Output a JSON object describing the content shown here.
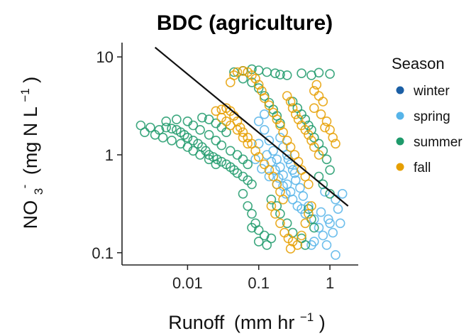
{
  "chart_data": {
    "type": "scatter",
    "title": "BDC (agriculture)",
    "xlabel": "Runoff",
    "xlabel_unit": "(mm hr",
    "xlabel_exp": "−1",
    "xlabel_close": ")",
    "ylabel_main": "NO",
    "ylabel_sub": "3",
    "ylabel_sup": "-",
    "ylabel_unit": "(mg N L",
    "ylabel_exp": "−1",
    "ylabel_close": ")",
    "x_scale": "log",
    "y_scale": "log",
    "xlim": [
      0.0012,
      2.5
    ],
    "ylim": [
      0.075,
      14
    ],
    "x_ticks": [
      {
        "value": 0.01,
        "label": "0.01"
      },
      {
        "value": 0.1,
        "label": "0.1"
      },
      {
        "value": 1,
        "label": "1"
      }
    ],
    "y_ticks": [
      {
        "value": 0.1,
        "label": "0.1"
      },
      {
        "value": 1,
        "label": "1"
      },
      {
        "value": 10,
        "label": "10"
      }
    ],
    "grid": false,
    "legend_title": "Season",
    "legend_position": "right",
    "marker": "open-circle",
    "series": [
      {
        "name": "winter",
        "color": "#1b5fa5",
        "points": []
      },
      {
        "name": "spring",
        "color": "#56b4e9",
        "points": [
          [
            0.1,
            2.2
          ],
          [
            0.12,
            1.8
          ],
          [
            0.14,
            1.4
          ],
          [
            0.16,
            1.1
          ],
          [
            0.18,
            0.9
          ],
          [
            0.2,
            0.75
          ],
          [
            0.22,
            0.62
          ],
          [
            0.25,
            0.5
          ],
          [
            0.28,
            0.42
          ],
          [
            0.3,
            0.35
          ],
          [
            0.35,
            0.3
          ],
          [
            0.4,
            0.28
          ],
          [
            0.45,
            0.25
          ],
          [
            0.1,
            1.3
          ],
          [
            0.13,
            1.0
          ],
          [
            0.15,
            0.85
          ],
          [
            0.17,
            0.7
          ],
          [
            0.19,
            0.58
          ],
          [
            0.22,
            0.48
          ],
          [
            0.09,
            0.9
          ],
          [
            0.11,
            0.72
          ],
          [
            0.14,
            0.6
          ],
          [
            0.18,
            0.5
          ],
          [
            0.24,
            0.4
          ],
          [
            0.26,
            0.9
          ],
          [
            0.3,
            0.7
          ],
          [
            0.33,
            0.55
          ],
          [
            0.38,
            0.46
          ],
          [
            0.42,
            0.38
          ],
          [
            0.5,
            0.3
          ],
          [
            0.6,
            0.22
          ],
          [
            0.7,
            0.18
          ],
          [
            0.8,
            0.15
          ],
          [
            0.6,
            0.13
          ],
          [
            0.9,
            0.12
          ],
          [
            1.0,
            0.2
          ],
          [
            1.1,
            0.16
          ],
          [
            0.75,
            0.26
          ],
          [
            0.95,
            0.22
          ],
          [
            1.2,
            0.35
          ],
          [
            1.3,
            0.28
          ],
          [
            1.2,
            0.095
          ],
          [
            1.4,
            0.2
          ],
          [
            0.55,
            0.12
          ],
          [
            1.5,
            0.4
          ],
          [
            0.85,
            0.42
          ],
          [
            0.2,
            1.5
          ],
          [
            0.22,
            1.2
          ],
          [
            0.25,
            1.0
          ],
          [
            0.28,
            0.8
          ],
          [
            0.32,
            0.65
          ],
          [
            0.12,
            2.6
          ]
        ]
      },
      {
        "name": "summer",
        "color": "#1e9a6b",
        "points": [
          [
            0.0022,
            2.0
          ],
          [
            0.003,
            1.9
          ],
          [
            0.004,
            1.8
          ],
          [
            0.005,
            1.9
          ],
          [
            0.006,
            1.85
          ],
          [
            0.007,
            1.8
          ],
          [
            0.008,
            1.7
          ],
          [
            0.009,
            1.6
          ],
          [
            0.01,
            1.5
          ],
          [
            0.012,
            1.4
          ],
          [
            0.014,
            1.3
          ],
          [
            0.016,
            1.2
          ],
          [
            0.018,
            1.1
          ],
          [
            0.02,
            1.0
          ],
          [
            0.023,
            0.95
          ],
          [
            0.026,
            0.9
          ],
          [
            0.03,
            0.85
          ],
          [
            0.035,
            0.8
          ],
          [
            0.04,
            0.75
          ],
          [
            0.045,
            0.7
          ],
          [
            0.05,
            0.65
          ],
          [
            0.06,
            0.6
          ],
          [
            0.07,
            0.55
          ],
          [
            0.08,
            0.5
          ],
          [
            0.0025,
            1.7
          ],
          [
            0.0035,
            1.6
          ],
          [
            0.0045,
            1.5
          ],
          [
            0.006,
            1.4
          ],
          [
            0.008,
            1.3
          ],
          [
            0.01,
            1.2
          ],
          [
            0.012,
            1.1
          ],
          [
            0.015,
            1.0
          ],
          [
            0.02,
            0.9
          ],
          [
            0.025,
            0.8
          ],
          [
            0.005,
            2.2
          ],
          [
            0.007,
            2.3
          ],
          [
            0.01,
            2.2
          ],
          [
            0.012,
            2.0
          ],
          [
            0.015,
            1.8
          ],
          [
            0.02,
            1.6
          ],
          [
            0.025,
            1.4
          ],
          [
            0.03,
            1.25
          ],
          [
            0.04,
            1.1
          ],
          [
            0.05,
            1.0
          ],
          [
            0.06,
            0.9
          ],
          [
            0.07,
            0.8
          ],
          [
            0.016,
            2.4
          ],
          [
            0.02,
            2.3
          ],
          [
            0.025,
            2.1
          ],
          [
            0.03,
            1.9
          ],
          [
            0.035,
            1.7
          ],
          [
            0.06,
            0.4
          ],
          [
            0.07,
            0.3
          ],
          [
            0.08,
            0.25
          ],
          [
            0.09,
            0.2
          ],
          [
            0.1,
            0.17
          ],
          [
            0.12,
            0.15
          ],
          [
            0.08,
            0.18
          ],
          [
            0.1,
            0.13
          ],
          [
            0.13,
            0.12
          ],
          [
            0.15,
            0.14
          ],
          [
            0.045,
            7.0
          ],
          [
            0.06,
            7.2
          ],
          [
            0.08,
            7.5
          ],
          [
            0.1,
            7.3
          ],
          [
            0.13,
            7.0
          ],
          [
            0.17,
            6.8
          ],
          [
            0.2,
            6.6
          ],
          [
            0.25,
            6.5
          ],
          [
            0.06,
            6.0
          ],
          [
            0.08,
            5.5
          ],
          [
            0.1,
            4.8
          ],
          [
            0.12,
            4.0
          ],
          [
            0.14,
            3.4
          ],
          [
            0.16,
            2.9
          ],
          [
            0.18,
            2.5
          ],
          [
            0.2,
            2.1
          ],
          [
            0.4,
            6.8
          ],
          [
            0.7,
            6.9
          ],
          [
            1.0,
            6.7
          ],
          [
            0.55,
            6.5
          ],
          [
            0.3,
            3.5
          ],
          [
            0.35,
            3.0
          ],
          [
            0.4,
            2.6
          ],
          [
            0.45,
            2.3
          ],
          [
            0.5,
            2.0
          ],
          [
            0.55,
            1.8
          ],
          [
            0.6,
            1.5
          ],
          [
            0.7,
            1.3
          ],
          [
            0.8,
            1.1
          ],
          [
            0.9,
            0.9
          ],
          [
            1.0,
            0.7
          ],
          [
            0.5,
            0.28
          ],
          [
            0.55,
            0.22
          ],
          [
            0.6,
            0.18
          ],
          [
            0.4,
            0.14
          ],
          [
            0.45,
            0.12
          ],
          [
            0.3,
            0.16
          ],
          [
            0.25,
            0.2
          ],
          [
            0.2,
            0.25
          ],
          [
            0.18,
            0.3
          ],
          [
            0.15,
            0.35
          ],
          [
            0.7,
            0.6
          ],
          [
            0.8,
            0.5
          ],
          [
            1.0,
            0.4
          ]
        ]
      },
      {
        "name": "fall",
        "color": "#e69f00",
        "points": [
          [
            0.025,
            2.8
          ],
          [
            0.03,
            2.9
          ],
          [
            0.035,
            3.0
          ],
          [
            0.04,
            2.8
          ],
          [
            0.045,
            2.5
          ],
          [
            0.05,
            2.2
          ],
          [
            0.055,
            1.9
          ],
          [
            0.06,
            1.7
          ],
          [
            0.07,
            1.5
          ],
          [
            0.08,
            1.3
          ],
          [
            0.09,
            1.1
          ],
          [
            0.1,
            0.95
          ],
          [
            0.12,
            0.8
          ],
          [
            0.14,
            0.7
          ],
          [
            0.16,
            0.6
          ],
          [
            0.18,
            0.5
          ],
          [
            0.2,
            0.42
          ],
          [
            0.22,
            0.35
          ],
          [
            0.03,
            2.4
          ],
          [
            0.035,
            2.2
          ],
          [
            0.04,
            2.0
          ],
          [
            0.05,
            1.8
          ],
          [
            0.06,
            1.5
          ],
          [
            0.07,
            1.3
          ],
          [
            0.04,
            5.5
          ],
          [
            0.045,
            6.5
          ],
          [
            0.05,
            7.0
          ],
          [
            0.06,
            7.2
          ],
          [
            0.07,
            7.0
          ],
          [
            0.08,
            6.5
          ],
          [
            0.09,
            6.0
          ],
          [
            0.1,
            5.2
          ],
          [
            0.11,
            4.5
          ],
          [
            0.12,
            3.8
          ],
          [
            0.14,
            3.2
          ],
          [
            0.16,
            2.7
          ],
          [
            0.18,
            2.3
          ],
          [
            0.2,
            2.0
          ],
          [
            0.22,
            1.7
          ],
          [
            0.25,
            1.4
          ],
          [
            0.28,
            1.2
          ],
          [
            0.32,
            1.0
          ],
          [
            0.36,
            0.85
          ],
          [
            0.4,
            0.7
          ],
          [
            0.45,
            0.6
          ],
          [
            0.5,
            0.5
          ],
          [
            0.25,
            4.0
          ],
          [
            0.28,
            3.5
          ],
          [
            0.3,
            3.0
          ],
          [
            0.33,
            2.6
          ],
          [
            0.36,
            2.3
          ],
          [
            0.4,
            2.0
          ],
          [
            0.45,
            1.8
          ],
          [
            0.5,
            1.6
          ],
          [
            0.55,
            1.4
          ],
          [
            0.6,
            1.2
          ],
          [
            0.7,
            1.0
          ],
          [
            0.6,
            4.5
          ],
          [
            0.7,
            4.0
          ],
          [
            0.8,
            3.5
          ],
          [
            0.6,
            3.0
          ],
          [
            0.75,
            2.6
          ],
          [
            0.9,
            2.2
          ],
          [
            1.0,
            1.8
          ],
          [
            1.1,
            1.5
          ],
          [
            1.2,
            1.3
          ],
          [
            0.85,
            1.9
          ],
          [
            0.65,
            5.2
          ],
          [
            0.15,
            0.3
          ],
          [
            0.17,
            0.25
          ],
          [
            0.2,
            0.2
          ],
          [
            0.23,
            0.16
          ],
          [
            0.26,
            0.14
          ],
          [
            0.3,
            0.13
          ],
          [
            0.35,
            0.12
          ],
          [
            0.28,
            0.11
          ],
          [
            0.4,
            0.15
          ],
          [
            0.45,
            0.2
          ],
          [
            0.5,
            0.25
          ],
          [
            0.55,
            0.3
          ]
        ]
      }
    ],
    "fit_line": {
      "color": "#111111",
      "from": [
        0.0035,
        12.5
      ],
      "to": [
        1.8,
        0.3
      ]
    }
  }
}
